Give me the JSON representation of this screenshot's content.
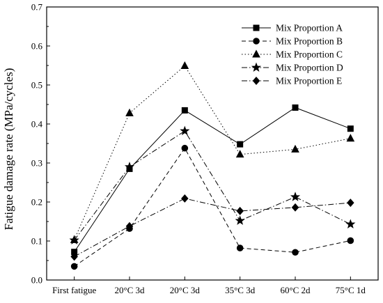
{
  "chart_data": {
    "type": "line",
    "title": "",
    "xlabel": "",
    "ylabel": "Fatigue damage rate (MPa/cycles)",
    "categories": [
      "First fatigue",
      "20°C 3d",
      "20°C 3d",
      "35°C 3d",
      "60°C 2d",
      "75°C 1d"
    ],
    "ylim": [
      0.0,
      0.7
    ],
    "yticks": [
      "0.0",
      "0.1",
      "0.2",
      "0.3",
      "0.4",
      "0.5",
      "0.6",
      "0.7"
    ],
    "legend_position": "top-right",
    "grid": false,
    "series": [
      {
        "name": "Mix Proportion A",
        "marker": "square",
        "dash": "solid",
        "values": [
          0.072,
          0.285,
          0.435,
          0.348,
          0.442,
          0.388
        ]
      },
      {
        "name": "Mix Proportion B",
        "marker": "circle",
        "dash": "dashed",
        "values": [
          0.035,
          0.132,
          0.338,
          0.082,
          0.071,
          0.101
        ]
      },
      {
        "name": "Mix Proportion C",
        "marker": "triangle",
        "dash": "dotted",
        "values": [
          0.103,
          0.428,
          0.549,
          0.322,
          0.335,
          0.363
        ]
      },
      {
        "name": "Mix Proportion D",
        "marker": "star",
        "dash": "dashdot",
        "values": [
          0.102,
          0.29,
          0.382,
          0.152,
          0.213,
          0.143
        ]
      },
      {
        "name": "Mix Proportion E",
        "marker": "diamond",
        "dash": "dashdot",
        "values": [
          0.06,
          0.138,
          0.209,
          0.177,
          0.186,
          0.198
        ]
      }
    ]
  }
}
